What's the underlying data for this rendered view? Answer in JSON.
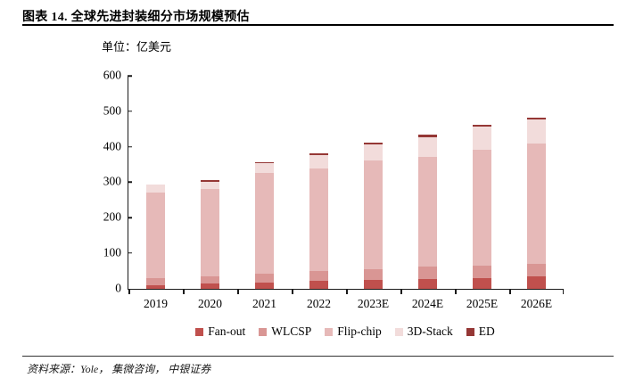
{
  "header": {
    "title": "图表 14. 全球先进封装细分市场规模预估"
  },
  "chart": {
    "unit_label": "单位：亿美元"
  },
  "footer": {
    "source": "资料来源：Yole， 集微咨询， 中银证券"
  },
  "chart_data": {
    "type": "bar",
    "stacked": true,
    "title": "全球先进封装细分市场规模预估",
    "unit": "亿美元",
    "categories": [
      "2019",
      "2020",
      "2021",
      "2022",
      "2023E",
      "2024E",
      "2025E",
      "2026E"
    ],
    "series": [
      {
        "name": "Fan-out",
        "color": "#C0504D",
        "values": [
          10,
          13,
          17,
          21,
          24,
          27,
          30,
          34
        ]
      },
      {
        "name": "WLCSP",
        "color": "#D99694",
        "values": [
          20,
          22,
          25,
          27,
          30,
          34,
          35,
          36
        ]
      },
      {
        "name": "Flip-chip",
        "color": "#E6B9B8",
        "values": [
          240,
          245,
          283,
          290,
          307,
          311,
          325,
          339
        ]
      },
      {
        "name": "3D-Stack",
        "color": "#F2DCDB",
        "values": [
          22,
          22,
          29,
          38,
          45,
          55,
          66,
          67
        ]
      },
      {
        "name": "ED",
        "color": "#953735",
        "values": [
          1,
          4,
          2,
          5,
          5,
          7,
          6,
          7
        ]
      }
    ],
    "totals": [
      293,
      306,
      356,
      381,
      411,
      434,
      462,
      483
    ],
    "xlabel": "",
    "ylabel": "",
    "ylim": [
      0,
      600
    ],
    "yticks": [
      0,
      100,
      200,
      300,
      400,
      500,
      600
    ],
    "grid": false,
    "legend_position": "bottom"
  }
}
